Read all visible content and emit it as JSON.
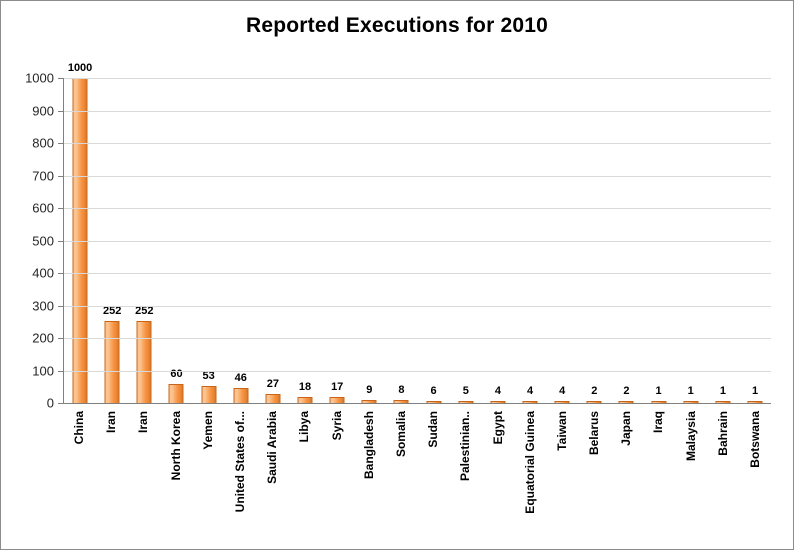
{
  "chart_data": {
    "type": "bar",
    "title": "Reported Executions for 2010",
    "categories": [
      "China",
      "Iran",
      "Iran",
      "North Korea",
      "Yemen",
      "United States of...",
      "Saudi Arabia",
      "Libya",
      "Syria",
      "Bangladesh",
      "Somalia",
      "Sudan",
      "Palestinian..",
      "Egypt",
      "Equatorial Guinea",
      "Taiwan",
      "Belarus",
      "Japan",
      "Iraq",
      "Malaysia",
      "Bahrain",
      "Botswana"
    ],
    "values": [
      1000,
      252,
      252,
      60,
      53,
      46,
      27,
      18,
      17,
      9,
      8,
      6,
      5,
      4,
      4,
      4,
      2,
      2,
      1,
      1,
      1,
      1
    ],
    "xlabel": "",
    "ylabel": "",
    "ylim": [
      0,
      1000
    ],
    "ytick_step": 100,
    "grid": true,
    "legend": "none",
    "bar_color": "#F79646",
    "bar_color_light": "#FCC490",
    "bar_color_dark": "#E07C28",
    "bar_border_color": "#C8651B",
    "gridline_color": "#D9D9D9",
    "axis_color": "#808080"
  }
}
